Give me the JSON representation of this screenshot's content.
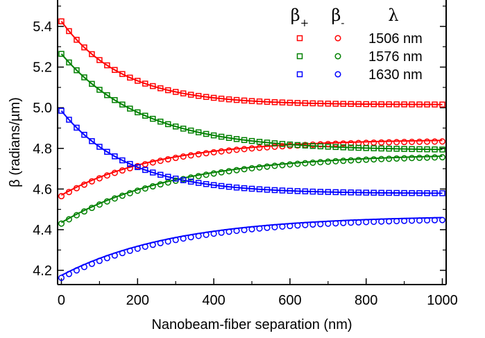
{
  "chart_data": {
    "type": "line",
    "title": "",
    "xlabel": "Nanobeam-fiber separation (nm)",
    "ylabel": "β (radians/µm)",
    "xlim": [
      -10,
      1010
    ],
    "ylim": [
      4.13,
      5.53
    ],
    "xticks": [
      0,
      200,
      400,
      600,
      800,
      1000
    ],
    "xtick_labels": [
      "0",
      "200",
      "400",
      "600",
      "800",
      "1000"
    ],
    "yticks": [
      4.2,
      4.4,
      4.6,
      4.8,
      5.0,
      5.2,
      5.4
    ],
    "ytick_labels": [
      "4.2",
      "4.4",
      "4.6",
      "4.8",
      "5.0",
      "5.2",
      "5.4"
    ],
    "legend": {
      "position": "top-right",
      "column_headers": {
        "plus": "β+",
        "minus": "β-",
        "lambda": "λ"
      },
      "entries": [
        {
          "label": "1506 nm",
          "color": "#ff0000"
        },
        {
          "label": "1576 nm",
          "color": "#008000"
        },
        {
          "label": "1630 nm",
          "color": "#0000ff"
        }
      ]
    },
    "marker_x": [
      0,
      20,
      40,
      60,
      80,
      100,
      120,
      140,
      160,
      180,
      200,
      220,
      240,
      260,
      280,
      300,
      320,
      340,
      360,
      380,
      400,
      420,
      440,
      460,
      480,
      500,
      520,
      540,
      560,
      580,
      600,
      620,
      640,
      660,
      680,
      700,
      720,
      740,
      760,
      780,
      800,
      820,
      840,
      860,
      880,
      900,
      920,
      940,
      960,
      980,
      1000
    ],
    "series": [
      {
        "wavelength": "1506 nm",
        "branch": "β+",
        "color": "#ff0000",
        "marker": "square",
        "y0": 5.425,
        "yinf": 5.015,
        "decay": 160,
        "marker_yshift": 0.0
      },
      {
        "wavelength": "1506 nm",
        "branch": "β-",
        "color": "#ff0000",
        "marker": "circle",
        "y0": 4.57,
        "yinf": 4.845,
        "decay": 260,
        "marker_yshift": -0.005
      },
      {
        "wavelength": "1576 nm",
        "branch": "β+",
        "color": "#008000",
        "marker": "square",
        "y0": 5.265,
        "yinf": 4.79,
        "decay": 215,
        "marker_yshift": 0.0
      },
      {
        "wavelength": "1576 nm",
        "branch": "β-",
        "color": "#008000",
        "marker": "circle",
        "y0": 4.435,
        "yinf": 4.775,
        "decay": 310,
        "marker_yshift": -0.005
      },
      {
        "wavelength": "1630 nm",
        "branch": "β+",
        "color": "#0000ff",
        "marker": "square",
        "y0": 4.985,
        "yinf": 4.578,
        "decay": 175,
        "marker_yshift": 0.0
      },
      {
        "wavelength": "1630 nm",
        "branch": "β-",
        "color": "#0000ff",
        "marker": "circle",
        "y0": 4.175,
        "yinf": 4.47,
        "decay": 300,
        "marker_yshift": -0.012
      }
    ]
  }
}
